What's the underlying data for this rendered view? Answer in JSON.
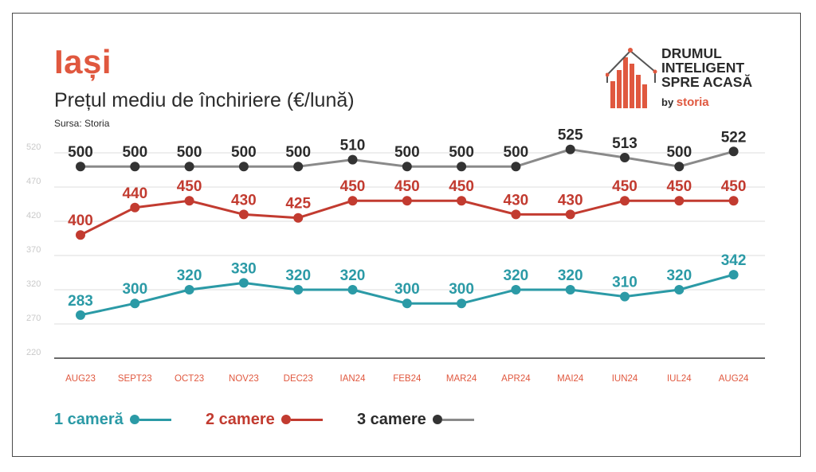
{
  "header": {
    "city": "Iași",
    "subtitle": "Prețul mediu de închiriere (€/lună)",
    "source": "Sursa: Storia"
  },
  "logo": {
    "line1": "DRUMUL",
    "line2": "INTELIGENT",
    "line3": "SPRE ACASĂ",
    "by": "by",
    "brand": "storia"
  },
  "colors": {
    "accent": "#e0583f",
    "teal": "#2b9aa6",
    "red": "#c23b30",
    "dark": "#2b2b2b",
    "gray": "#8a8a8a"
  },
  "chart_data": {
    "type": "line",
    "title": "Prețul mediu de închiriere (€/lună)",
    "categories": [
      "AUG23",
      "SEPT23",
      "OCT23",
      "NOV23",
      "DEC23",
      "IAN24",
      "FEB24",
      "MAR24",
      "APR24",
      "MAI24",
      "IUN24",
      "IUL24",
      "AUG24"
    ],
    "yticks": [
      220,
      270,
      320,
      370,
      420,
      470,
      520
    ],
    "ylim": [
      220,
      540
    ],
    "grid": true,
    "legend_position": "bottom-left",
    "series": [
      {
        "name": "1 cameră",
        "color": "#2b9aa6",
        "line_color": "#2b9aa6",
        "label_color": "#2b9aa6",
        "values": [
          283,
          300,
          320,
          330,
          320,
          320,
          300,
          300,
          320,
          320,
          310,
          320,
          342
        ]
      },
      {
        "name": "2 camere",
        "color": "#c23b30",
        "line_color": "#c23b30",
        "label_color": "#c23b30",
        "values": [
          400,
          440,
          450,
          430,
          425,
          450,
          450,
          450,
          430,
          430,
          450,
          450,
          450
        ]
      },
      {
        "name": "3 camere",
        "color": "#333333",
        "line_color": "#8a8a8a",
        "label_color": "#2b2b2b",
        "values": [
          500,
          500,
          500,
          500,
          500,
          510,
          500,
          500,
          500,
          525,
          513,
          500,
          522
        ]
      }
    ]
  }
}
